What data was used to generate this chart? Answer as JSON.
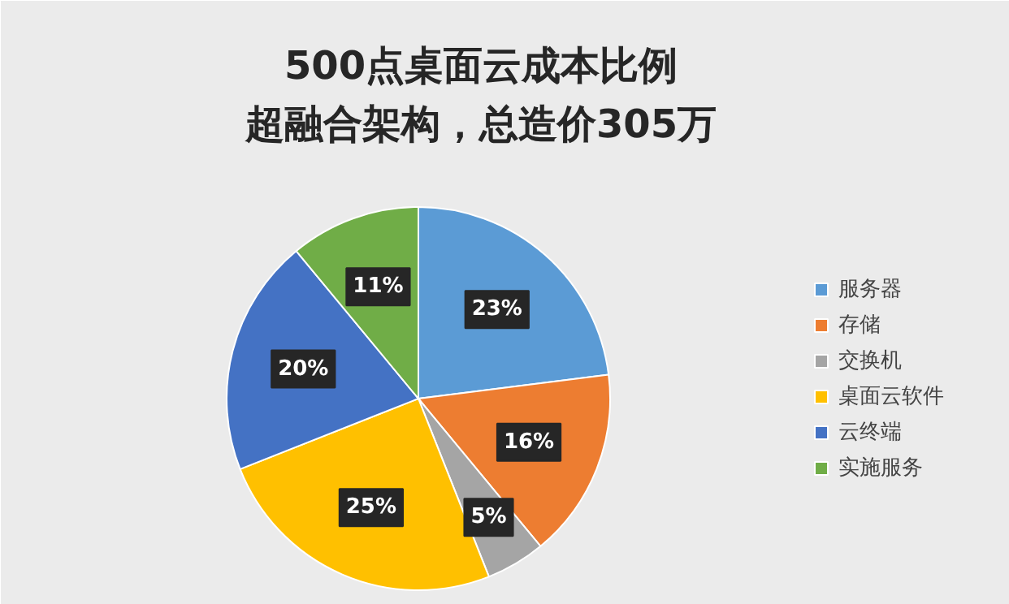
{
  "chart_data": {
    "type": "pie",
    "title": "500点桌面云成本比例",
    "subtitle": "超融合架构，总造价305万",
    "categories": [
      "服务器",
      "存储",
      "交换机",
      "桌面云软件",
      "云终端",
      "实施服务"
    ],
    "values": [
      23,
      16,
      5,
      25,
      20,
      11
    ],
    "colors": [
      "#5b9bd5",
      "#ed7d31",
      "#a5a5a5",
      "#ffc000",
      "#4472c4",
      "#70ad47"
    ],
    "value_labels": [
      "23%",
      "16%",
      "5%",
      "25%",
      "20%",
      "11%"
    ],
    "legend": "right"
  }
}
